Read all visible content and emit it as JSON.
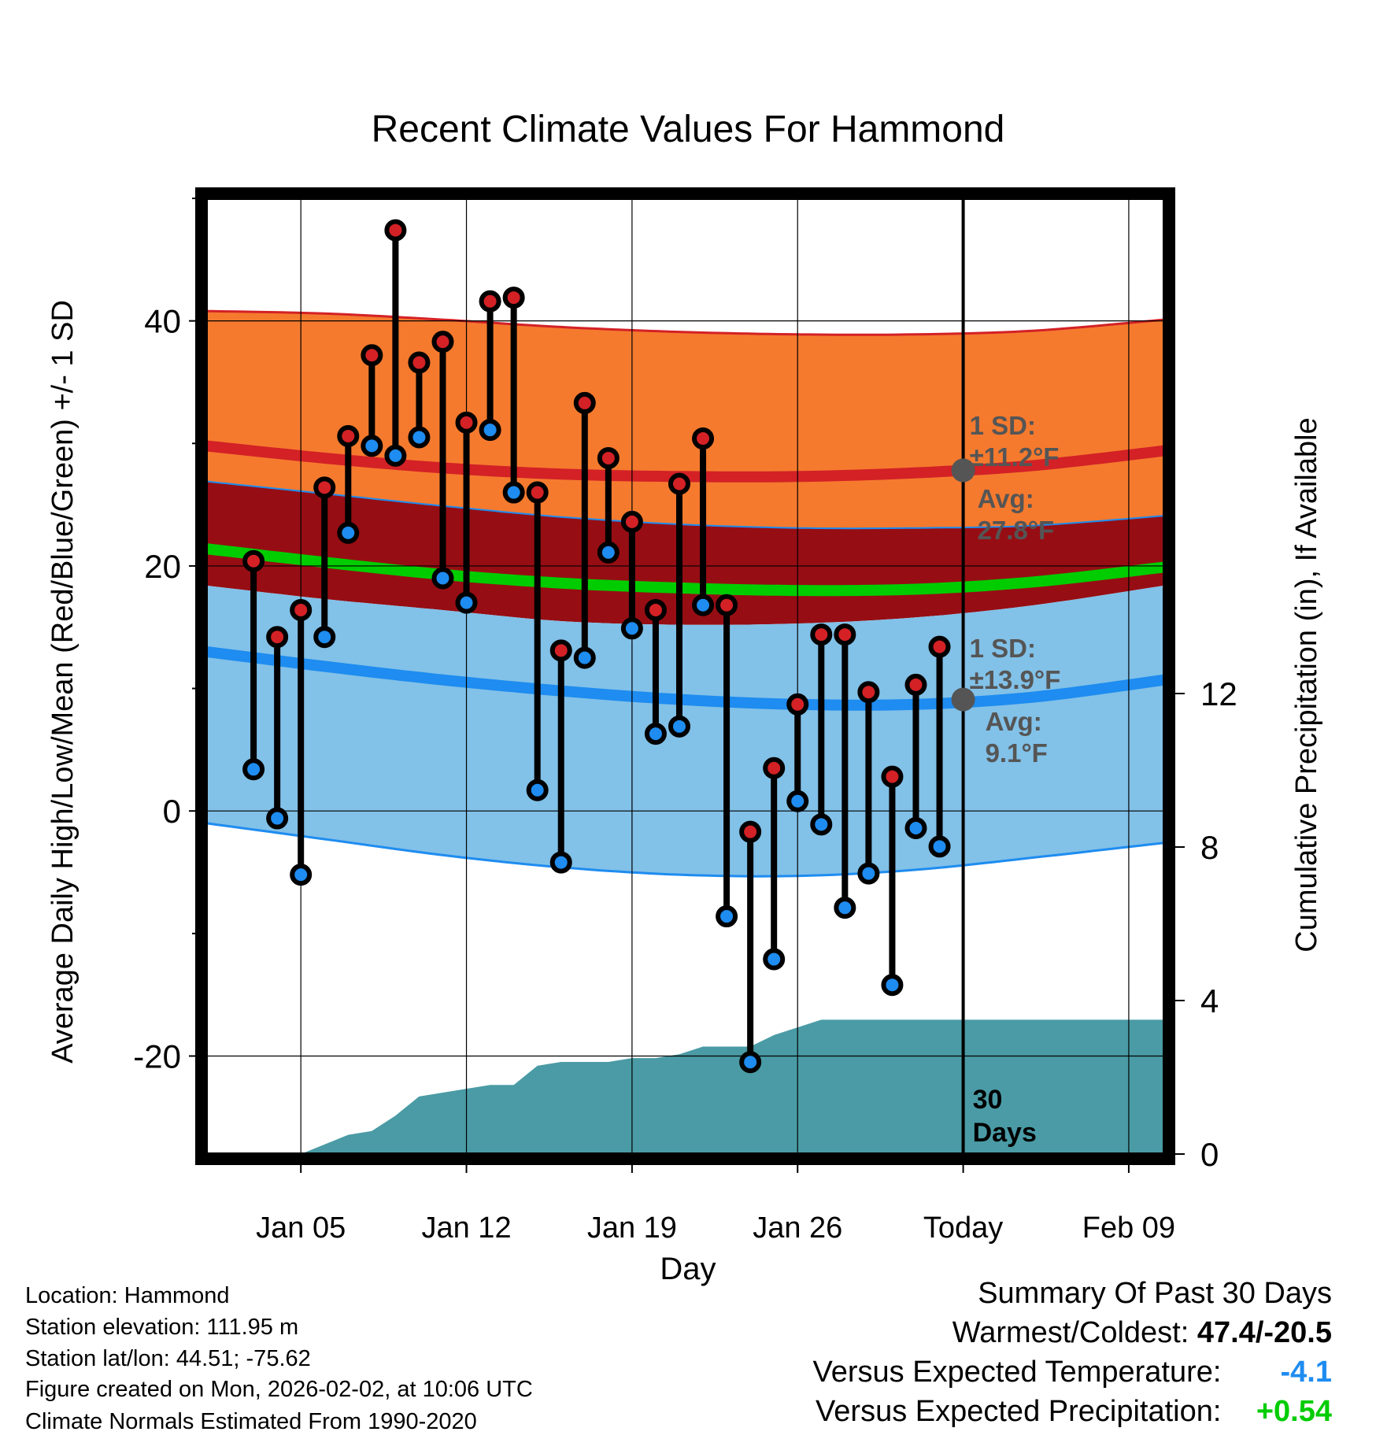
{
  "chart_data": {
    "type": "line",
    "title": "Recent Climate Values For Hammond",
    "xlabel": "Day",
    "ylabel_left": "Average Daily High/Low/Mean (Red/Blue/Green) +/- 1 SD",
    "ylabel_right": "Cumulative Precipitation (in), If Available",
    "ylim_left": [
      -28,
      50
    ],
    "ylim_right": [
      0,
      24.9
    ],
    "xlim_days": [
      1,
      41.5
    ],
    "x_ticks": [
      {
        "day": 5,
        "label": "Jan 05"
      },
      {
        "day": 12,
        "label": "Jan 12"
      },
      {
        "day": 19,
        "label": "Jan 19"
      },
      {
        "day": 26,
        "label": "Jan 26"
      },
      {
        "day": 33,
        "label": "Today"
      },
      {
        "day": 40,
        "label": "Feb 09"
      }
    ],
    "y_ticks_left": [
      -20,
      0,
      20,
      40
    ],
    "y_minor_left": [
      -10,
      10,
      30,
      50
    ],
    "y_ticks_right": [
      0,
      4,
      8,
      12
    ],
    "today_day": 33,
    "days_label": "30\nDays",
    "colors": {
      "high_band": "#f57a2e",
      "overlap_band": "#960e14",
      "low_band": "#82c1e8",
      "high_line": "#d32126",
      "low_line": "#1e8cf0",
      "mean_line": "#00cc00",
      "precip": "#4a9ba5",
      "high_marker": "#d32126",
      "low_marker": "#1e8cf0",
      "annotation": "#555555"
    },
    "normals": {
      "days": [
        1,
        6,
        11,
        16,
        21,
        26,
        31,
        36,
        41.5
      ],
      "high_upper": [
        40.8,
        40.6,
        40.1,
        39.5,
        39.1,
        38.9,
        38.9,
        39.2,
        40.1
      ],
      "high_mean": [
        29.8,
        28.8,
        28.0,
        27.5,
        27.3,
        27.3,
        27.6,
        28.2,
        29.4
      ],
      "low_upper": [
        26.9,
        25.9,
        24.9,
        24.0,
        23.4,
        23.1,
        23.1,
        23.3,
        24.1
      ],
      "mean": [
        21.4,
        20.3,
        19.3,
        18.6,
        18.2,
        18.0,
        18.1,
        18.7,
        19.9
      ],
      "high_lower": [
        18.4,
        17.3,
        16.4,
        15.5,
        15.2,
        15.3,
        15.8,
        16.8,
        18.4
      ],
      "low_mean": [
        13.0,
        11.8,
        10.7,
        9.8,
        9.1,
        8.7,
        8.7,
        9.3,
        10.7
      ],
      "low_lower": [
        -1.0,
        -2.3,
        -3.6,
        -4.6,
        -5.2,
        -5.3,
        -4.8,
        -3.8,
        -2.6
      ]
    },
    "daily": {
      "days": [
        3,
        4,
        5,
        6,
        7,
        8,
        9,
        10,
        11,
        12,
        13,
        14,
        15,
        16,
        17,
        18,
        19,
        20,
        21,
        22,
        23,
        24,
        25,
        26,
        27,
        28,
        29,
        30,
        31,
        32
      ],
      "highs": [
        20.4,
        14.2,
        16.4,
        26.4,
        30.6,
        37.2,
        47.4,
        36.6,
        38.3,
        31.7,
        41.6,
        41.9,
        26.0,
        13.1,
        33.3,
        28.8,
        23.6,
        16.4,
        26.7,
        30.4,
        16.8,
        -1.7,
        3.5,
        8.7,
        14.4,
        14.4,
        9.7,
        2.8,
        10.3,
        13.4
      ],
      "lows": [
        3.4,
        -0.6,
        -5.2,
        14.2,
        22.7,
        29.8,
        29.0,
        30.5,
        19.0,
        17.0,
        31.1,
        26.0,
        1.7,
        -4.2,
        12.5,
        21.1,
        14.9,
        6.3,
        6.9,
        16.8,
        -8.6,
        -20.5,
        -12.1,
        0.8,
        -1.1,
        -7.9,
        -5.1,
        -14.2,
        -1.4,
        -2.9
      ]
    },
    "precip": {
      "days": [
        5,
        7,
        8,
        9,
        10,
        11,
        12,
        13,
        14,
        15,
        16,
        17,
        18,
        19,
        20,
        21,
        22,
        23,
        24,
        25,
        26,
        27,
        28,
        29,
        30,
        31,
        32,
        33,
        41.5
      ],
      "values": [
        0.0,
        0.5,
        0.6,
        1.0,
        1.5,
        1.6,
        1.7,
        1.8,
        1.8,
        2.3,
        2.4,
        2.4,
        2.4,
        2.5,
        2.5,
        2.6,
        2.8,
        2.8,
        2.8,
        3.1,
        3.3,
        3.5,
        3.5,
        3.5,
        3.5,
        3.5,
        3.5,
        3.5,
        3.5
      ]
    },
    "annotations": {
      "high_sd": "1 SD:\n±11.2°F",
      "high_avg": "Avg:\n27.8°F",
      "high_avg_value": 27.8,
      "low_sd": "1 SD:\n±13.9°F",
      "low_avg": "Avg:\n9.1°F",
      "low_avg_value": 9.1
    }
  },
  "info": {
    "location": "Location: Hammond",
    "elevation": "Station elevation: 111.95 m",
    "latlon": "Station lat/lon: 44.51; -75.62",
    "created": "Figure created on Mon, 2026-02-02, at 10:06 UTC",
    "normals": "Climate Normals Estimated From 1990-2020"
  },
  "summary": {
    "title": "Summary Of Past 30 Days",
    "warmest_label": "Warmest/Coldest:",
    "warmest_value": "47.4/-20.5",
    "temp_label": "Versus Expected Temperature:",
    "temp_value": "-4.1",
    "temp_color": "#1e8cf0",
    "precip_label": "Versus Expected Precipitation:",
    "precip_value": "+0.54",
    "precip_color": "#00cc00"
  }
}
